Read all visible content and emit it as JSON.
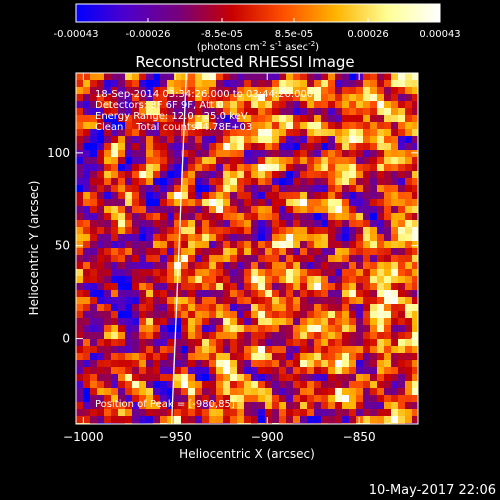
{
  "chart_data": {
    "type": "heatmap",
    "title": "Reconstructed RHESSI Image",
    "colorbar": {
      "ticks": [
        "-0.00043",
        "-0.00026",
        "-8.5e-05",
        "8.5e-05",
        "0.00026",
        "0.00043"
      ],
      "tick_values": [
        -0.00043,
        -0.00026,
        -8.5e-05,
        8.5e-05,
        0.00026,
        0.00043
      ],
      "range": [
        -0.00043,
        0.00043
      ],
      "unit_label": "(photons cm",
      "unit_exp1": "-2",
      "unit_mid": " s",
      "unit_exp2": "-1",
      "unit_end": " asec",
      "unit_exp3": "-2",
      "unit_close": ")",
      "colormap": [
        "#0000ff",
        "#5000c8",
        "#780078",
        "#c80000",
        "#ff5000",
        "#ffb400",
        "#ffff96",
        "#ffffff"
      ]
    },
    "annotations": [
      "18-Sep-2014 03:34:26.000 to 03:44:26.000",
      "Detectors: 3F 6F 9F, Att 0",
      "Energy Range: 12.0 - 25.0 keV",
      "Clean    Total counts: 4.78E+03"
    ],
    "peak_label": "Position of Peak = [-980,85]",
    "peak_position": [
      -980,
      85
    ],
    "xlabel": "Heliocentric X (arcsec)",
    "ylabel": "Heliocentric Y (arcsec)",
    "xlim": [
      -1004,
      -818
    ],
    "ylim": [
      -46,
      143
    ],
    "xticks": [
      -1000,
      -950,
      -900,
      -850
    ],
    "xtick_labels": [
      "−1000",
      "−950",
      "−900",
      "−850"
    ],
    "yticks": [
      0,
      50,
      100
    ],
    "ytick_labels": [
      "0",
      "50",
      "100"
    ],
    "limb_line": [
      [
        -952,
        -46
      ],
      [
        -944,
        143
      ]
    ],
    "grid": false
  },
  "footer": {
    "timestamp": "10-May-2017 22:06"
  }
}
